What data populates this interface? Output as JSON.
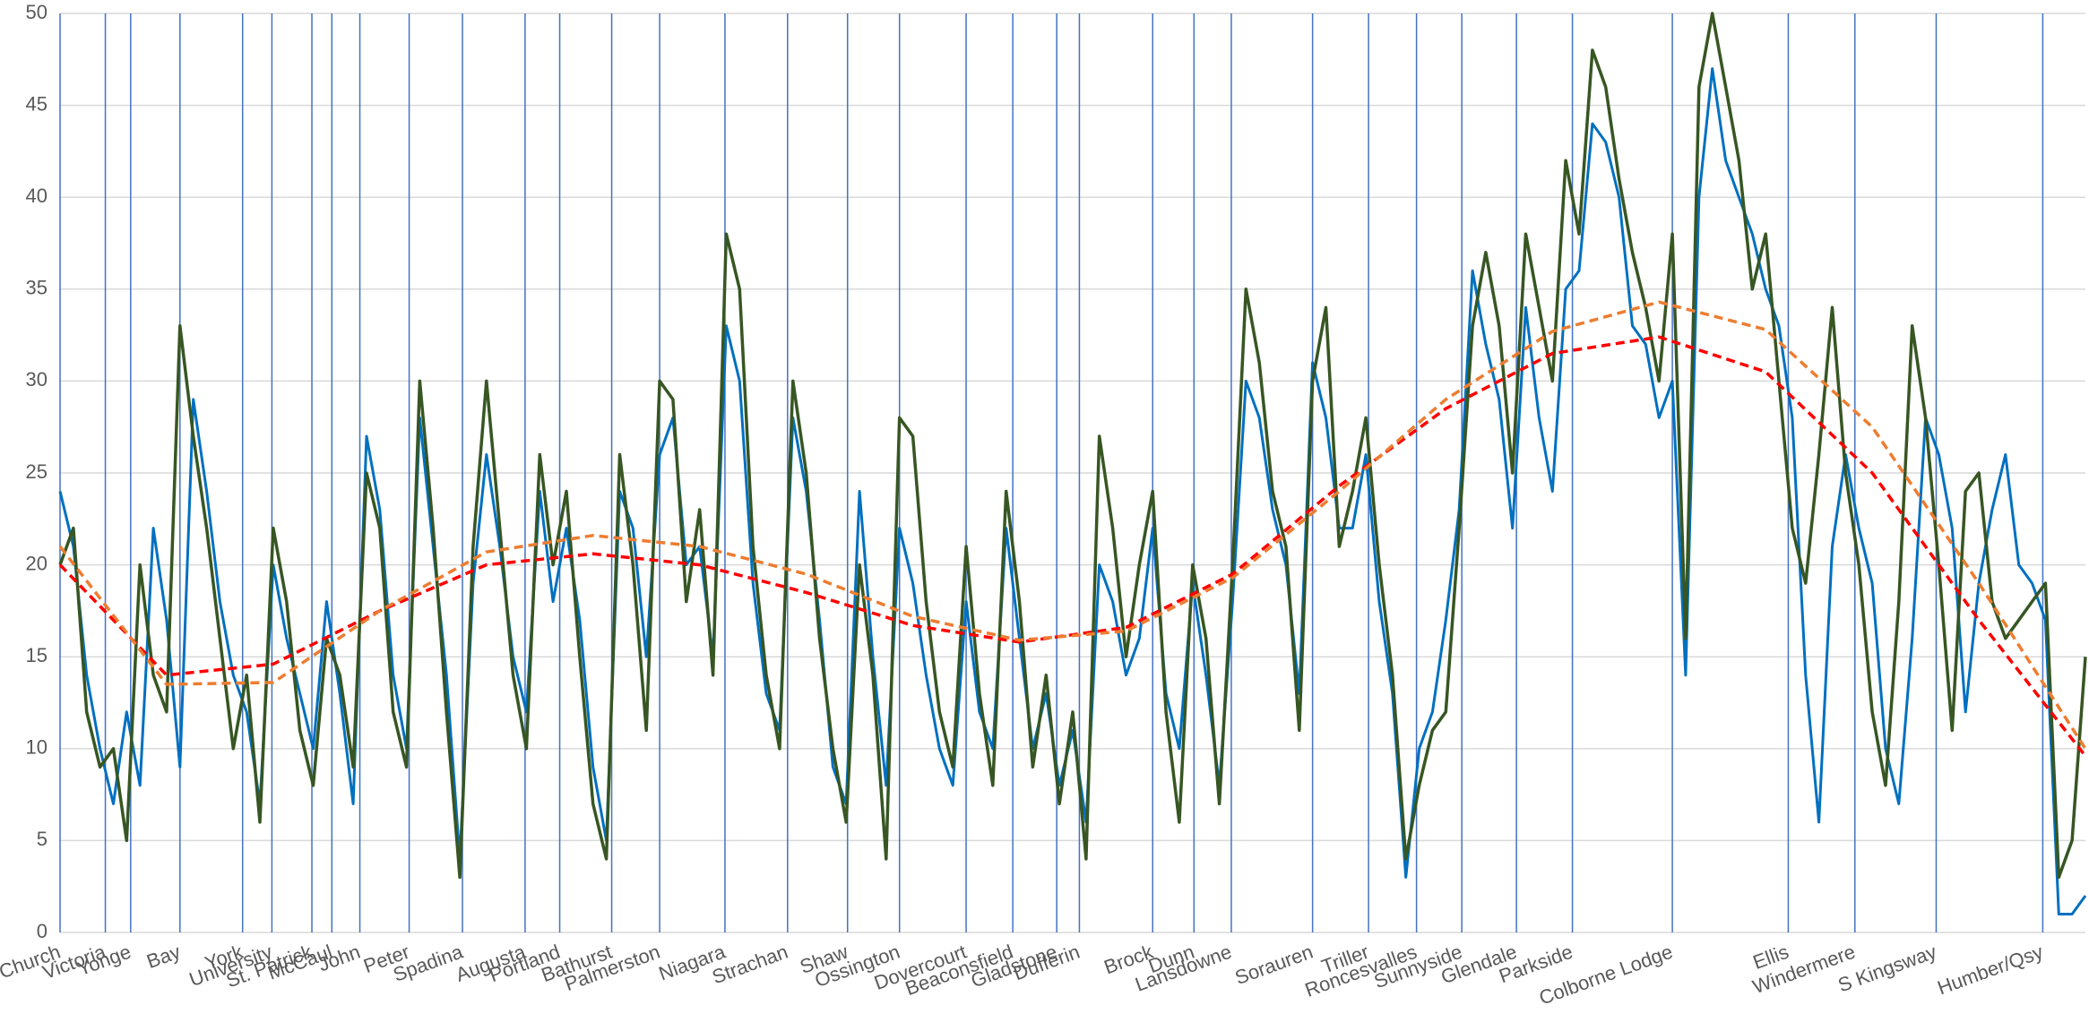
{
  "chart_data": {
    "type": "line",
    "xlim": [
      0,
      1520
    ],
    "xticks": [
      {
        "value": 0,
        "label": "Church"
      },
      {
        "value": 34,
        "label": "Victoria"
      },
      {
        "value": 53,
        "label": "Yonge"
      },
      {
        "value": 90,
        "label": "Bay"
      },
      {
        "value": 137,
        "label": "York"
      },
      {
        "value": 159,
        "label": "University"
      },
      {
        "value": 189,
        "label": "St. Patrick"
      },
      {
        "value": 204,
        "label": "McCaul"
      },
      {
        "value": 225,
        "label": "John"
      },
      {
        "value": 262,
        "label": "Peter"
      },
      {
        "value": 302,
        "label": "Spadina"
      },
      {
        "value": 349,
        "label": "Augusta"
      },
      {
        "value": 375,
        "label": "Portland"
      },
      {
        "value": 414,
        "label": "Bathurst"
      },
      {
        "value": 450,
        "label": "Palmerston"
      },
      {
        "value": 499,
        "label": "Niagara"
      },
      {
        "value": 546,
        "label": "Strachan"
      },
      {
        "value": 591,
        "label": "Shaw"
      },
      {
        "value": 630,
        "label": "Ossington"
      },
      {
        "value": 680,
        "label": "Dovercourt"
      },
      {
        "value": 715,
        "label": "Beaconsfield"
      },
      {
        "value": 748,
        "label": "Gladstone"
      },
      {
        "value": 765,
        "label": "Dufferin"
      },
      {
        "value": 820,
        "label": "Brock"
      },
      {
        "value": 851,
        "label": "Dunn"
      },
      {
        "value": 879,
        "label": "Lansdowne"
      },
      {
        "value": 940,
        "label": "Sorauren"
      },
      {
        "value": 982,
        "label": "Triller"
      },
      {
        "value": 1018,
        "label": "Roncesvalles"
      },
      {
        "value": 1052,
        "label": "Sunnyside"
      },
      {
        "value": 1093,
        "label": "Glendale"
      },
      {
        "value": 1135,
        "label": "Parkside"
      },
      {
        "value": 1210,
        "label": "Colborne Lodge"
      },
      {
        "value": 1297,
        "label": "Ellis"
      },
      {
        "value": 1347,
        "label": "Windermere"
      },
      {
        "value": 1408,
        "label": "S Kingsway"
      },
      {
        "value": 1488,
        "label": "Humber/Qsy"
      }
    ],
    "ylim": [
      0,
      50
    ],
    "yticks": [
      0,
      5,
      10,
      15,
      20,
      25,
      30,
      35,
      40,
      45,
      50
    ],
    "grid": true,
    "x": [
      0,
      10,
      20,
      30,
      40,
      50,
      60,
      70,
      80,
      90,
      100,
      110,
      120,
      130,
      140,
      150,
      160,
      170,
      180,
      190,
      200,
      210,
      220,
      230,
      240,
      250,
      260,
      270,
      280,
      290,
      300,
      310,
      320,
      330,
      340,
      350,
      360,
      370,
      380,
      390,
      400,
      410,
      420,
      430,
      440,
      450,
      460,
      470,
      480,
      490,
      500,
      510,
      520,
      530,
      540,
      550,
      560,
      570,
      580,
      590,
      600,
      610,
      620,
      630,
      640,
      650,
      660,
      670,
      680,
      690,
      700,
      710,
      720,
      730,
      740,
      750,
      760,
      770,
      780,
      790,
      800,
      810,
      820,
      830,
      840,
      850,
      860,
      870,
      880,
      890,
      900,
      910,
      920,
      930,
      940,
      950,
      960,
      970,
      980,
      990,
      1000,
      1010,
      1020,
      1030,
      1040,
      1050,
      1060,
      1070,
      1080,
      1090,
      1100,
      1110,
      1120,
      1130,
      1140,
      1150,
      1160,
      1170,
      1180,
      1190,
      1200,
      1210,
      1220,
      1230,
      1240,
      1250,
      1260,
      1270,
      1280,
      1290,
      1300,
      1310,
      1320,
      1330,
      1340,
      1350,
      1360,
      1370,
      1380,
      1390,
      1400,
      1410,
      1420,
      1430,
      1440,
      1450,
      1460,
      1470,
      1480,
      1490,
      1500,
      1510,
      1520
    ],
    "series": [
      {
        "color": "#0070c0",
        "width": 3,
        "values": [
          24,
          21,
          14,
          10,
          7,
          12,
          8,
          22,
          17,
          9,
          29,
          24,
          18,
          14,
          12,
          7,
          20,
          16,
          13,
          10,
          18,
          13,
          7,
          27,
          23,
          14,
          10,
          28,
          21,
          14,
          4,
          19,
          26,
          21,
          15,
          12,
          24,
          18,
          22,
          17,
          9,
          5,
          24,
          22,
          15,
          26,
          28,
          20,
          21,
          15,
          33,
          30,
          19,
          13,
          11,
          28,
          24,
          17,
          9,
          7,
          24,
          15,
          8,
          22,
          19,
          14,
          10,
          8,
          18,
          12,
          10,
          22,
          16,
          10,
          13,
          8,
          11,
          6,
          20,
          18,
          14,
          16,
          22,
          13,
          10,
          19,
          14,
          8,
          18,
          30,
          28,
          23,
          20,
          13,
          31,
          28,
          22,
          22,
          26,
          18,
          13,
          3,
          10,
          12,
          17,
          23,
          36,
          32,
          29,
          22,
          34,
          28,
          24,
          35,
          36,
          44,
          43,
          40,
          33,
          32,
          28,
          30,
          14,
          40,
          47,
          42,
          40,
          38,
          35,
          33,
          28,
          14,
          6,
          21,
          26,
          22,
          19,
          10,
          7,
          16,
          28,
          26,
          22,
          12,
          19,
          23,
          26,
          20,
          19,
          17,
          1,
          1,
          2
        ]
      },
      {
        "color": "#375623",
        "width": 3.5,
        "values": [
          20,
          22,
          12,
          9,
          10,
          5,
          20,
          14,
          12,
          33,
          27,
          22,
          16,
          10,
          14,
          6,
          22,
          18,
          11,
          8,
          16,
          14,
          9,
          25,
          22,
          12,
          9,
          30,
          22,
          12,
          3,
          21,
          30,
          22,
          14,
          10,
          26,
          20,
          24,
          15,
          7,
          4,
          26,
          20,
          11,
          30,
          29,
          18,
          23,
          14,
          38,
          35,
          21,
          14,
          10,
          30,
          25,
          16,
          10,
          6,
          20,
          14,
          4,
          28,
          27,
          18,
          12,
          9,
          21,
          13,
          8,
          24,
          18,
          9,
          14,
          7,
          12,
          4,
          27,
          22,
          15,
          20,
          24,
          12,
          6,
          20,
          16,
          7,
          20,
          35,
          31,
          24,
          21,
          11,
          30,
          34,
          21,
          24,
          28,
          20,
          14,
          4,
          8,
          11,
          12,
          22,
          33,
          37,
          33,
          25,
          38,
          34,
          30,
          42,
          38,
          48,
          46,
          41,
          37,
          34,
          30,
          38,
          16,
          46,
          50,
          46,
          42,
          35,
          38,
          30,
          22,
          19,
          26,
          34,
          25,
          20,
          12,
          8,
          18,
          33,
          28,
          20,
          11,
          24,
          25,
          18,
          16,
          17,
          18,
          19,
          3,
          5,
          15
        ]
      },
      {
        "color": "#ff0000",
        "width": 3.5,
        "dash": "10 6",
        "x": [
          0,
          80,
          160,
          240,
          320,
          400,
          480,
          560,
          640,
          720,
          800,
          880,
          960,
          1040,
          1120,
          1200,
          1280,
          1360,
          1440,
          1520
        ],
        "values": [
          20,
          14,
          14.6,
          17.5,
          20,
          20.6,
          20,
          18.5,
          16.7,
          15.8,
          16.6,
          19.5,
          24.3,
          28.5,
          31.5,
          32.4,
          30.5,
          25,
          17,
          9.6
        ]
      },
      {
        "color": "#ed7d31",
        "width": 3.5,
        "dash": "10 6",
        "x": [
          0,
          80,
          160,
          240,
          320,
          400,
          480,
          560,
          640,
          720,
          800,
          880,
          960,
          1040,
          1120,
          1200,
          1280,
          1360,
          1440,
          1520
        ],
        "values": [
          21,
          13.5,
          13.6,
          17.5,
          20.7,
          21.6,
          21,
          19.5,
          17.2,
          15.9,
          16.4,
          19.3,
          24,
          29,
          32.7,
          34.3,
          32.8,
          27.5,
          19,
          10
        ]
      }
    ]
  }
}
